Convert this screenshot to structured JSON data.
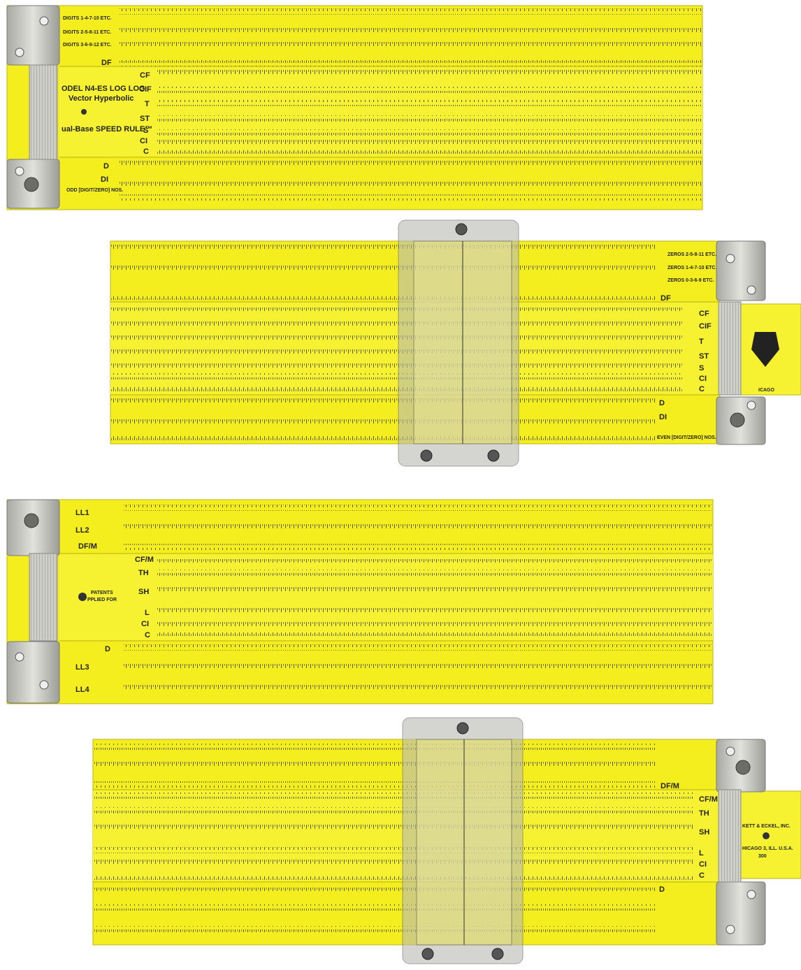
{
  "segments": [
    {
      "id": "front-left",
      "header": [
        "DIGITS 1-4-7-10 ETC.",
        "DIGITS 2-5-8-11 ETC.",
        "DIGITS 3-6-9-12 ETC."
      ],
      "scales_top": [
        "DF"
      ],
      "scales_slide": [
        "CF",
        "CIF",
        "T",
        "ST",
        "S",
        "CI",
        "C"
      ],
      "scales_bottom": [
        "D",
        "DI"
      ],
      "bottom_note": "ODD [DIGIT/ZERO] NOS.",
      "model_lines": [
        "ODEL N4-ES  LOG LOG",
        "Vector  Hyperbolic",
        "ual-Base  SPEED RULE™"
      ]
    },
    {
      "id": "front-right",
      "header": [
        "ZEROS 2-5-8-11 ETC.",
        "ZEROS 1-4-7-10 ETC.",
        "ZEROS 0-3-6-9 ETC."
      ],
      "scales_top": [
        "DF"
      ],
      "scales_slide": [
        "CF",
        "CIF",
        "T",
        "ST",
        "S",
        "CI",
        "C"
      ],
      "scales_bottom": [
        "D",
        "DI"
      ],
      "bottom_note": "EVEN [DIGIT/ZERO] NOS.",
      "tab_text": "ICAGO"
    },
    {
      "id": "back-left",
      "scales_top": [
        "LL1",
        "LL2",
        "DF/M"
      ],
      "scales_slide": [
        "CF/M",
        "TH",
        "SH",
        "L",
        "CI",
        "C"
      ],
      "scales_bottom": [
        "D",
        "LL3",
        "LL4"
      ],
      "note": [
        "PATENTS",
        "PPLIED FOR"
      ]
    },
    {
      "id": "back-right",
      "scales_top": [
        "DF/M"
      ],
      "scales_slide": [
        "CF/M",
        "TH",
        "SH",
        "L",
        "CI",
        "C"
      ],
      "scales_bottom": [
        "D"
      ],
      "tab_lines": [
        "KETT & ECKEL, INC.",
        "HICAGO 3, ILL. U.S.A.",
        "300"
      ]
    }
  ],
  "colors": {
    "body": "#f5ee1e",
    "slide": "#f7f231",
    "ink": "#222222",
    "metal": "#c9c9c4",
    "cursor": "#e8e49a"
  }
}
